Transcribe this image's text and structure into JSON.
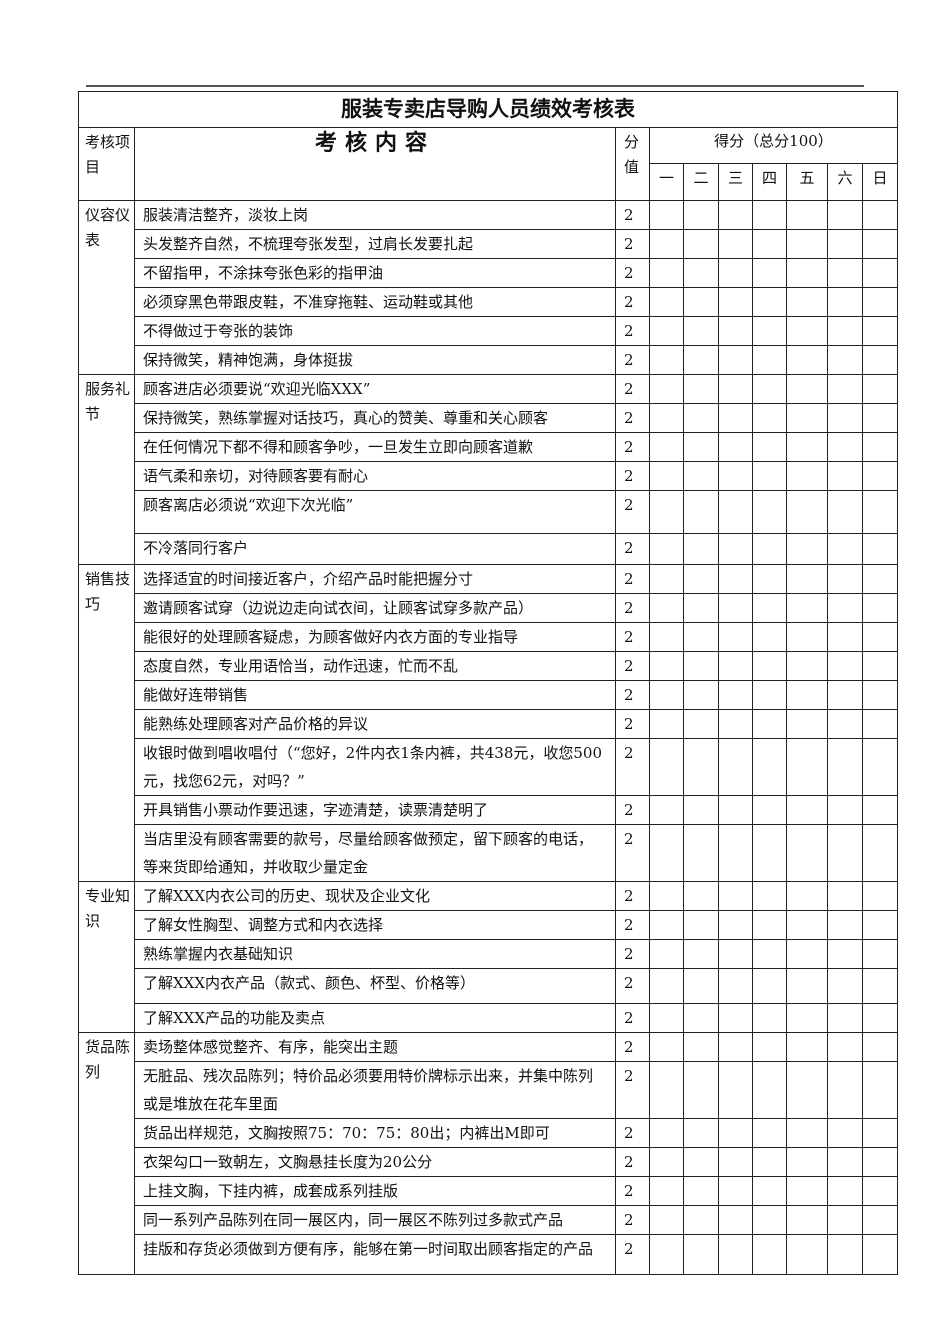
{
  "title": "服装专卖店导购人员绩效考核表",
  "header": {
    "item_col": "考核项目",
    "content_col": "考核内容",
    "value_col": "分值",
    "score_col": "得分（总分100）",
    "days": [
      "一",
      "二",
      "三",
      "四",
      "五",
      "六",
      "日"
    ]
  },
  "sections": [
    {
      "category": "仪容仪表",
      "items": [
        {
          "text": "服装清洁整齐，淡妆上岗",
          "value": "2"
        },
        {
          "text": "头发整齐自然，不梳理夸张发型，过肩长发要扎起",
          "value": "2"
        },
        {
          "text": "不留指甲，不涂抹夸张色彩的指甲油",
          "value": "2"
        },
        {
          "text": "必须穿黑色带跟皮鞋，不准穿拖鞋、运动鞋或其他",
          "value": "2"
        },
        {
          "text": "不得做过于夸张的装饰",
          "value": "2"
        },
        {
          "text": "保持微笑，精神饱满，身体挺拔",
          "value": "2"
        }
      ]
    },
    {
      "category": "服务礼节",
      "items": [
        {
          "text": "顾客进店必须要说“欢迎光临XXX”",
          "value": "2"
        },
        {
          "text": "保持微笑，熟练掌握对话技巧，真心的赞美、尊重和关心顾客",
          "value": "2"
        },
        {
          "text": "在任何情况下都不得和顾客争吵，一旦发生立即向顾客道歉",
          "value": "2"
        },
        {
          "text": "语气柔和亲切，对待顾客要有耐心",
          "value": "2"
        },
        {
          "text": "顾客离店必须说“欢迎下次光临”",
          "value": "2"
        },
        {
          "text": "不冷落同行客户",
          "value": "2"
        }
      ]
    },
    {
      "category": "销售技巧",
      "items": [
        {
          "text": "选择适宜的时间接近客户，介绍产品时能把握分寸",
          "value": "2"
        },
        {
          "text": "邀请顾客试穿（边说边走向试衣间，让顾客试穿多款产品）",
          "value": "2"
        },
        {
          "text": "能很好的处理顾客疑虑，为顾客做好内衣方面的专业指导",
          "value": "2"
        },
        {
          "text": "态度自然，专业用语恰当，动作迅速，忙而不乱",
          "value": "2"
        },
        {
          "text": "能做好连带销售",
          "value": "2"
        },
        {
          "text": "能熟练处理顾客对产品价格的异议",
          "value": "2"
        },
        {
          "text": "收银时做到唱收唱付（“您好，2件内衣1条内裤，共438元，收您500元，找您62元，对吗？”",
          "value": "2"
        },
        {
          "text": "开具销售小票动作要迅速，字迹清楚，读票清楚明了",
          "value": "2"
        },
        {
          "text": "当店里没有顾客需要的款号，尽量给顾客做预定，留下顾客的电话，等来货即给通知，并收取少量定金",
          "value": "2"
        }
      ]
    },
    {
      "category": "专业知识",
      "items": [
        {
          "text": "了解XXX内衣公司的历史、现状及企业文化",
          "value": "2"
        },
        {
          "text": "了解女性胸型、调整方式和内衣选择",
          "value": "2"
        },
        {
          "text": "熟练掌握内衣基础知识",
          "value": "2"
        },
        {
          "text": "了解XXX内衣产品（款式、颜色、杯型、价格等）",
          "value": "2"
        },
        {
          "text": "了解XXX产品的功能及卖点",
          "value": "2"
        }
      ]
    },
    {
      "category": "货品陈列",
      "items": [
        {
          "text": "卖场整体感觉整齐、有序，能突出主题",
          "value": "2"
        },
        {
          "text": "无脏品、残次品陈列；特价品必须要用特价牌标示出来，并集中陈列或是堆放在花车里面",
          "value": "2"
        },
        {
          "text": "货品出样规范，文胸按照75：70：75：80出；内裤出M即可",
          "value": "2"
        },
        {
          "text": "衣架勾口一致朝左，文胸悬挂长度为20公分",
          "value": "2"
        },
        {
          "text": "上挂文胸，下挂内裤，成套成系列挂版",
          "value": "2"
        },
        {
          "text": "同一系列产品陈列在同一展区内，同一展区不陈列过多款式产品",
          "value": "2"
        },
        {
          "text": "挂版和存货必须做到方便有序，能够在第一时间取出顾客指定的产品",
          "value": "2"
        }
      ]
    }
  ]
}
